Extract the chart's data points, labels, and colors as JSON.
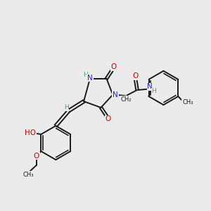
{
  "bg_color": "#ebebeb",
  "bond_color": "#1a1a1a",
  "bond_width": 1.4,
  "N_color": "#2222cc",
  "O_color": "#cc0000",
  "H_color": "#4a9a8a",
  "font_size": 7.5,
  "fig_width": 3.0,
  "fig_height": 3.0,
  "dpi": 100,
  "xlim": [
    0,
    10
  ],
  "ylim": [
    0,
    10
  ]
}
